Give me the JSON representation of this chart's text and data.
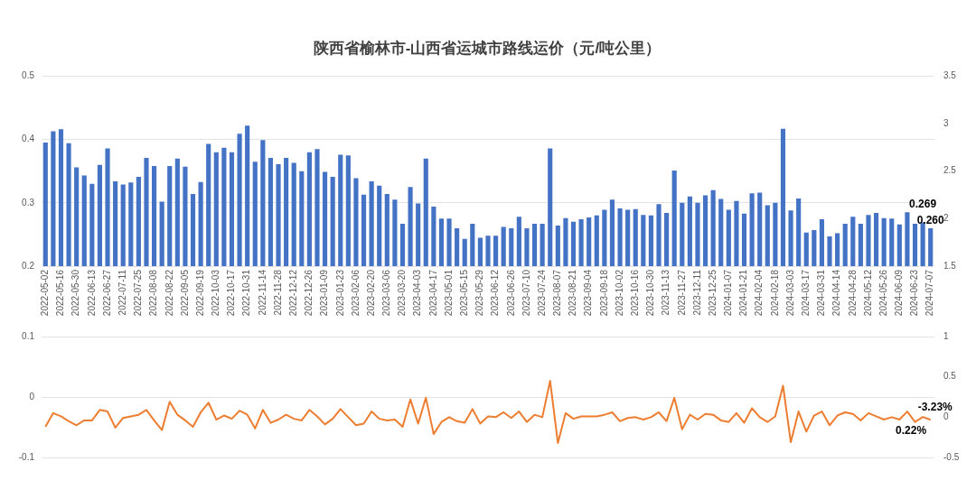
{
  "chart_data": [
    {
      "type": "bar",
      "title": "陕西省榆林市-山西省运城市路线运价（元/吨公里）",
      "categories": [
        "2022-05-02",
        null,
        "2022-05-16",
        null,
        "2022-05-30",
        null,
        "2022-06-13",
        null,
        "2022-06-27",
        null,
        "2022-07-11",
        null,
        "2022-07-25",
        null,
        "2022-08-08",
        null,
        "2022-08-22",
        null,
        "2022-09-05",
        null,
        "2022-09-19",
        null,
        "2022-10-03",
        null,
        "2022-10-17",
        null,
        "2022-10-31",
        null,
        "2022-11-14",
        null,
        "2022-11-28",
        null,
        "2022-12-12",
        null,
        "2022-12-26",
        null,
        "2023-01-09",
        null,
        "2023-01-23",
        null,
        "2023-02-06",
        null,
        "2023-02-20",
        null,
        "2023-03-06",
        null,
        "2023-03-20",
        null,
        "2023-04-03",
        null,
        "2023-04-17",
        null,
        "2023-05-01",
        null,
        "2023-05-15",
        null,
        "2023-05-29",
        null,
        "2023-06-12",
        null,
        "2023-06-26",
        null,
        "2023-07-10",
        null,
        "2023-07-24",
        null,
        "2023-08-07",
        null,
        "2023-08-21",
        null,
        "2023-09-04",
        null,
        "2023-09-18",
        null,
        "2023-10-02",
        null,
        "2023-10-16",
        null,
        "2023-10-30",
        null,
        "2023-11-13",
        null,
        "2023-11-27",
        null,
        "2023-12-11",
        null,
        "2023-12-25",
        null,
        "2024-01-07",
        null,
        "2024-01-21",
        null,
        "2024-02-04",
        null,
        "2024-02-18",
        null,
        "2024-03-03",
        null,
        "2024-03-17",
        null,
        "2024-03-31",
        null,
        "2024-04-14",
        null,
        "2024-04-28",
        null,
        "2024-05-12",
        null,
        "2024-05-26",
        null,
        "2024-06-09",
        null,
        "2024-06-23",
        null,
        "2024-07-07"
      ],
      "series": [
        {
          "color": "#4472c4",
          "values": [
            0.395,
            0.413,
            0.416,
            0.394,
            0.356,
            0.343,
            0.33,
            0.36,
            0.386,
            0.334,
            0.329,
            0.332,
            0.341,
            0.371,
            0.358,
            0.302,
            0.358,
            0.37,
            0.357,
            0.314,
            0.333,
            0.393,
            0.38,
            0.387,
            0.38,
            0.409,
            0.422,
            0.365,
            0.399,
            0.371,
            0.361,
            0.371,
            0.363,
            0.35,
            0.38,
            0.385,
            0.349,
            0.341,
            0.376,
            0.375,
            0.339,
            0.313,
            0.334,
            0.327,
            0.314,
            0.305,
            0.267,
            0.325,
            0.299,
            0.37,
            0.294,
            0.275,
            0.275,
            0.26,
            0.243,
            0.267,
            0.245,
            0.248,
            0.248,
            0.262,
            0.26,
            0.278,
            0.26,
            0.267,
            0.267,
            0.386,
            0.264,
            0.276,
            0.27,
            0.274,
            0.277,
            0.28,
            0.289,
            0.305,
            0.291,
            0.289,
            0.29,
            0.281,
            0.28,
            0.298,
            0.284,
            0.351,
            0.3,
            0.31,
            0.3,
            0.312,
            0.32,
            0.306,
            0.289,
            0.303,
            0.283,
            0.315,
            0.316,
            0.296,
            0.3,
            0.417,
            0.288,
            0.307,
            0.253,
            0.257,
            0.274,
            0.247,
            0.252,
            0.267,
            0.278,
            0.267,
            0.281,
            0.284,
            0.276,
            0.275,
            0.266,
            0.285,
            0.267,
            0.269,
            0.26
          ],
          "value_labels": [
            null,
            null,
            null,
            null,
            null,
            null,
            null,
            null,
            null,
            null,
            null,
            null,
            null,
            null,
            null,
            null,
            null,
            null,
            null,
            null,
            null,
            null,
            null,
            null,
            null,
            null,
            null,
            null,
            null,
            null,
            null,
            null,
            null,
            null,
            null,
            null,
            null,
            null,
            null,
            null,
            null,
            null,
            null,
            null,
            null,
            null,
            null,
            null,
            null,
            null,
            null,
            null,
            null,
            null,
            null,
            null,
            null,
            null,
            null,
            null,
            null,
            null,
            null,
            null,
            null,
            null,
            null,
            null,
            null,
            null,
            null,
            null,
            null,
            null,
            null,
            null,
            null,
            null,
            null,
            null,
            null,
            null,
            null,
            null,
            null,
            null,
            null,
            null,
            null,
            null,
            null,
            null,
            null,
            null,
            null,
            null,
            null,
            null,
            null,
            null,
            null,
            null,
            null,
            null,
            null,
            null,
            null,
            null,
            null,
            null,
            null,
            null,
            null,
            "0.269",
            "0.260"
          ]
        }
      ],
      "ylim": [
        0.2,
        0.5
      ],
      "yticks": [
        0.2,
        0.3,
        0.4,
        0.5
      ],
      "y2lim": [
        1.5,
        3.5
      ],
      "y2ticks": [
        1.5,
        2,
        2.5,
        3,
        3.5
      ],
      "grid": "y",
      "legend": false
    },
    {
      "type": "line",
      "categories": [
        "2022-05-02",
        null,
        "2022-05-16",
        null,
        "2022-05-30",
        null,
        "2022-06-13",
        null,
        "2022-06-27",
        null,
        "2022-07-11",
        null,
        "2022-07-25",
        null,
        "2022-08-08",
        null,
        "2022-08-22",
        null,
        "2022-09-05",
        null,
        "2022-09-19",
        null,
        "2022-10-03",
        null,
        "2022-10-17",
        null,
        "2022-10-31",
        null,
        "2022-11-14",
        null,
        "2022-11-28",
        null,
        "2022-12-12",
        null,
        "2022-12-26",
        null,
        "2023-01-09",
        null,
        "2023-01-23",
        null,
        "2023-02-06",
        null,
        "2023-02-20",
        null,
        "2023-03-06",
        null,
        "2023-03-20",
        null,
        "2023-04-03",
        null,
        "2023-04-17",
        null,
        "2023-05-01",
        null,
        "2023-05-15",
        null,
        "2023-05-29",
        null,
        "2023-06-12",
        null,
        "2023-06-26",
        null,
        "2023-07-10",
        null,
        "2023-07-24",
        null,
        "2023-08-07",
        null,
        "2023-08-21",
        null,
        "2023-09-04",
        null,
        "2023-09-18",
        null,
        "2023-10-02",
        null,
        "2023-10-16",
        null,
        "2023-10-30",
        null,
        "2023-11-13",
        null,
        "2023-11-27",
        null,
        "2023-12-11",
        null,
        "2023-12-25",
        null,
        "2024-01-07",
        null,
        "2024-01-21",
        null,
        "2024-02-04",
        null,
        "2024-02-18",
        null,
        "2024-03-03",
        null,
        "2024-03-17",
        null,
        "2024-03-31",
        null,
        "2024-04-14",
        null,
        "2024-04-28",
        null,
        "2024-05-12",
        null,
        "2024-05-26",
        null,
        "2024-06-09",
        null,
        "2024-06-23",
        null,
        "2024-07-07"
      ],
      "series": [
        {
          "axis": "y2",
          "color": "#ed7d31",
          "values": [
            -0.12,
            0.05,
            0.01,
            -0.05,
            -0.1,
            -0.04,
            -0.04,
            0.09,
            0.07,
            -0.13,
            -0.01,
            0.01,
            0.03,
            0.09,
            -0.04,
            -0.16,
            0.19,
            0.03,
            -0.04,
            -0.12,
            0.06,
            0.18,
            -0.03,
            0.02,
            -0.02,
            0.08,
            0.03,
            -0.14,
            0.09,
            -0.07,
            -0.03,
            0.03,
            -0.02,
            -0.04,
            0.09,
            0.01,
            -0.09,
            -0.02,
            0.1,
            0,
            -0.1,
            -0.08,
            0.07,
            -0.02,
            -0.04,
            -0.03,
            -0.12,
            0.22,
            -0.08,
            0.24,
            -0.21,
            -0.06,
            0,
            -0.05,
            -0.07,
            0.1,
            -0.08,
            0.01,
            0,
            0.06,
            -0.01,
            0.07,
            -0.06,
            0.03,
            0,
            0.45,
            -0.32,
            0.05,
            -0.02,
            0.01,
            0.01,
            0.01,
            0.03,
            0.06,
            -0.05,
            -0.01,
            0,
            -0.03,
            0,
            0.06,
            -0.05,
            0.24,
            -0.15,
            0.03,
            -0.03,
            0.04,
            0.03,
            -0.04,
            -0.06,
            0.05,
            -0.07,
            0.11,
            0,
            -0.06,
            0.01,
            0.39,
            -0.31,
            0.07,
            -0.18,
            0.02,
            0.07,
            -0.1,
            0.02,
            0.06,
            0.04,
            -0.04,
            0.05,
            0.01,
            -0.03,
            0,
            -0.03,
            0.07,
            -0.06,
            0.0022,
            -0.0323
          ],
          "value_labels": [
            null,
            null,
            null,
            null,
            null,
            null,
            null,
            null,
            null,
            null,
            null,
            null,
            null,
            null,
            null,
            null,
            null,
            null,
            null,
            null,
            null,
            null,
            null,
            null,
            null,
            null,
            null,
            null,
            null,
            null,
            null,
            null,
            null,
            null,
            null,
            null,
            null,
            null,
            null,
            null,
            null,
            null,
            null,
            null,
            null,
            null,
            null,
            null,
            null,
            null,
            null,
            null,
            null,
            null,
            null,
            null,
            null,
            null,
            null,
            null,
            null,
            null,
            null,
            null,
            null,
            null,
            null,
            null,
            null,
            null,
            null,
            null,
            null,
            null,
            null,
            null,
            null,
            null,
            null,
            null,
            null,
            null,
            null,
            null,
            null,
            null,
            null,
            null,
            null,
            null,
            null,
            null,
            null,
            null,
            null,
            null,
            null,
            null,
            null,
            null,
            null,
            null,
            null,
            null,
            null,
            null,
            null,
            null,
            null,
            null,
            null,
            null,
            null,
            "0.22%",
            "-3.23%"
          ]
        }
      ],
      "ylim": [
        -0.1,
        0.1
      ],
      "yticks": [
        -0.1,
        0,
        0.1
      ],
      "y2lim": [
        -0.5,
        1
      ],
      "y2ticks": [
        -0.5,
        0,
        0.5,
        1
      ],
      "grid": "y",
      "legend": false,
      "marker": "none",
      "tick_labels": "y"
    }
  ]
}
